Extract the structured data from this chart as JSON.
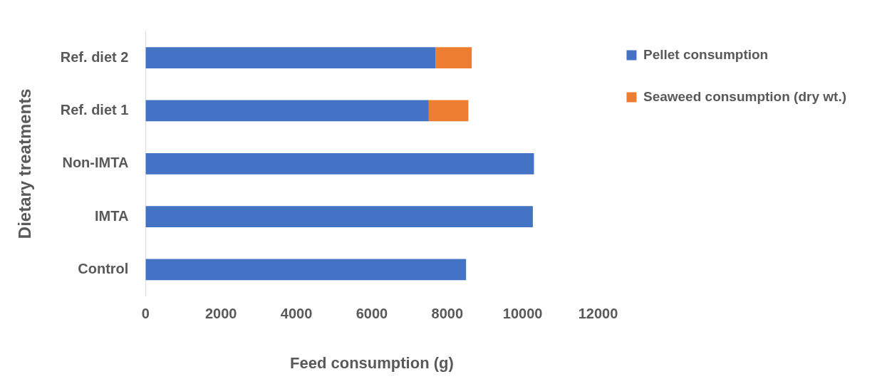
{
  "chart_data": {
    "type": "bar",
    "orientation": "horizontal",
    "stacked": true,
    "xlabel": "Feed consumption (g)",
    "ylabel": "Dietary treatments",
    "categories": [
      "Ref. diet 2",
      "Ref. diet 1",
      "Non-IMTA",
      "IMTA",
      "Control"
    ],
    "series": [
      {
        "name": "Pellet consumption",
        "color": "#4472c4",
        "values": [
          7690,
          7510,
          10300,
          10270,
          8500
        ]
      },
      {
        "name": "Seaweed consumption (dry wt.)",
        "color": "#ed7d31",
        "values": [
          960,
          1050,
          null,
          null,
          null
        ]
      }
    ],
    "xlim": [
      0,
      12000
    ],
    "xticks": [
      0,
      2000,
      4000,
      6000,
      8000,
      10000,
      12000
    ],
    "grid": false,
    "legend": "top right"
  }
}
